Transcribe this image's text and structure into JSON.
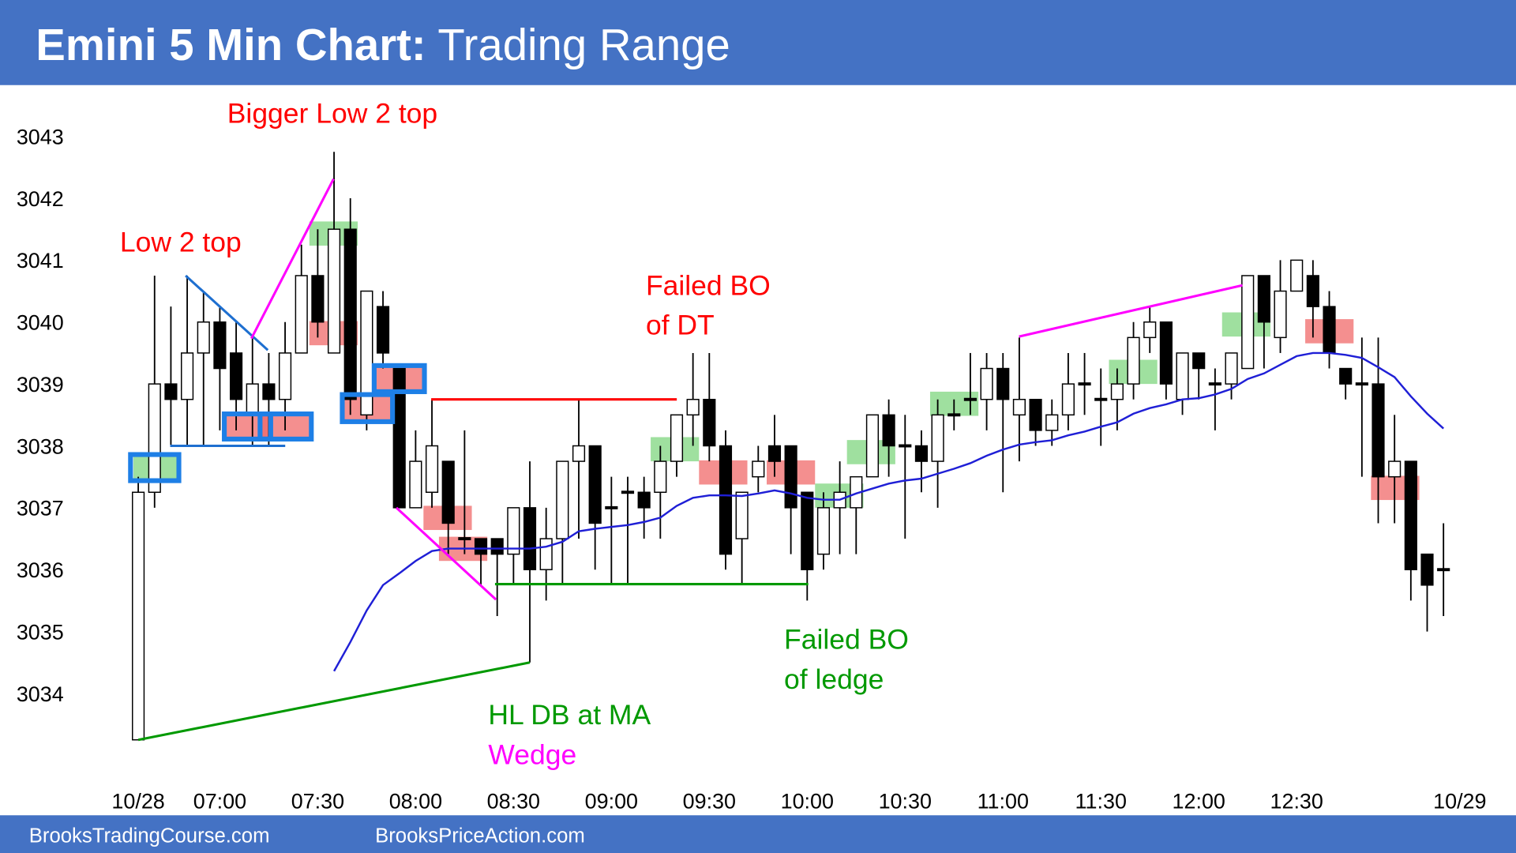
{
  "chart_data": {
    "type": "candlestick",
    "title": "Emini 5 Min Chart:",
    "subtitle": "Trading Range",
    "footer": [
      "BrooksTradingCourse.com",
      "BrooksPriceAction.com"
    ],
    "up_color": "#ffffff",
    "down_color": "#000000",
    "open": [
      3033.25,
      3037.25,
      3039,
      3038.75,
      3039.5,
      3040,
      3039.5,
      3038.5,
      3039,
      3038.75,
      3039.5,
      3040.75,
      3039.5,
      3041.5,
      3038.5,
      3040.25,
      3039.25,
      3037,
      3037.25,
      3037.75,
      3036.5,
      3036.5,
      3036.5,
      3036.25,
      3037,
      3036,
      3036.5,
      3037.75,
      3038,
      3037,
      3037.25,
      3037.25,
      3037.25,
      3037.75,
      3038.5,
      3038.75,
      3038,
      3036.5,
      3037.5,
      3038,
      3038,
      3037.25,
      3036.25,
      3037,
      3037,
      3037.5,
      3038.5,
      3038,
      3038,
      3037.75,
      3038.5,
      3038.75,
      3038.75,
      3039.25,
      3038.5,
      3038.75,
      3038.25,
      3038.5,
      3039,
      3038.75,
      3038.75,
      3039,
      3039.75,
      3040,
      3038.75,
      3039.5,
      3039,
      3039,
      3039.25,
      3040.75,
      3039.75,
      3040.5,
      3040.75,
      3040.25,
      3039.25,
      3039,
      3039,
      3037.5,
      3037.75,
      3036.25,
      3036
    ],
    "high": [
      3037.5,
      3040.75,
      3040.25,
      3040.75,
      3040.5,
      3040.25,
      3040,
      3039.75,
      3039.5,
      3040,
      3041.25,
      3041.5,
      3042.75,
      3042,
      3040.5,
      3040.5,
      3039.25,
      3038.25,
      3038.75,
      3037.75,
      3038.25,
      3036.5,
      3036.5,
      3037,
      3037.75,
      3037,
      3037.75,
      3038.75,
      3038,
      3037.5,
      3037.5,
      3037.5,
      3038,
      3038.5,
      3039.5,
      3039.5,
      3038.25,
      3037.25,
      3038,
      3038.5,
      3038,
      3037.25,
      3037.25,
      3037.75,
      3037.5,
      3038.5,
      3038.75,
      3038.5,
      3038.25,
      3038.75,
      3038.75,
      3039.5,
      3039.5,
      3039.5,
      3039.75,
      3038.75,
      3038.75,
      3039.5,
      3039.5,
      3039.25,
      3039.25,
      3040,
      3040.25,
      3040,
      3039.5,
      3039.5,
      3039.25,
      3039.5,
      3040.75,
      3040.75,
      3041,
      3041,
      3041,
      3040.5,
      3039.25,
      3039.75,
      3039.75,
      3038.5,
      3037.75,
      3036.25,
      3036.75
    ],
    "low": [
      3033.25,
      3037,
      3038,
      3038,
      3038,
      3038.25,
      3038.25,
      3038,
      3038,
      3038.25,
      3039.5,
      3039.75,
      3039.5,
      3038.5,
      3038.25,
      3039.25,
      3037,
      3037,
      3037,
      3036.25,
      3036.25,
      3035.75,
      3035.25,
      3035.75,
      3034.5,
      3035.5,
      3035.75,
      3036.5,
      3036,
      3035.75,
      3035.75,
      3036.5,
      3036.5,
      3037.5,
      3038,
      3037.75,
      3036,
      3035.75,
      3037.25,
      3037.5,
      3036.25,
      3035.5,
      3036,
      3036.25,
      3036.25,
      3037.5,
      3037.5,
      3036.5,
      3037.25,
      3037,
      3038.25,
      3038.5,
      3038.25,
      3037.25,
      3037.75,
      3038,
      3038,
      3038.25,
      3038.5,
      3038,
      3038.25,
      3038.75,
      3039.5,
      3038.75,
      3038.5,
      3038.75,
      3038.25,
      3038.75,
      3039.25,
      3039.25,
      3039.5,
      3040.5,
      3039.75,
      3039.25,
      3038.75,
      3037.5,
      3036.75,
      3036.75,
      3035.5,
      3035,
      3035.25
    ],
    "close": [
      3037.25,
      3039,
      3038.75,
      3039.5,
      3040,
      3039.25,
      3038.75,
      3039,
      3038.75,
      3039.5,
      3040.75,
      3040,
      3041.5,
      3038.75,
      3040.5,
      3039.5,
      3037,
      3037.75,
      3038,
      3036.75,
      3036.5,
      3036.25,
      3036.25,
      3037,
      3036,
      3036.5,
      3037.75,
      3038,
      3036.75,
      3037,
      3037.25,
      3037,
      3037.75,
      3038.5,
      3038.75,
      3038,
      3036.25,
      3037.25,
      3037.75,
      3037.75,
      3037,
      3036,
      3037,
      3037.25,
      3037.5,
      3038.5,
      3038,
      3038,
      3037.75,
      3038.5,
      3038.5,
      3038.75,
      3039.25,
      3038.75,
      3038.75,
      3038.25,
      3038.5,
      3039,
      3039,
      3038.75,
      3039,
      3039.75,
      3040,
      3039,
      3039.5,
      3039.25,
      3039,
      3039.5,
      3040.75,
      3040,
      3040.5,
      3041,
      3040.25,
      3039.5,
      3039,
      3039,
      3037.5,
      3037.75,
      3036,
      3035.75,
      3036
    ],
    "ma": {
      "color": "#1f1fd6",
      "values": [
        null,
        null,
        null,
        null,
        null,
        null,
        null,
        null,
        null,
        null,
        null,
        null,
        3034.36,
        3034.83,
        3035.34,
        3035.75,
        3035.94,
        3036.14,
        3036.3,
        3036.34,
        3036.34,
        3036.34,
        3036.34,
        3036.34,
        3036.34,
        3036.37,
        3036.45,
        3036.62,
        3036.66,
        3036.69,
        3036.72,
        3036.77,
        3036.84,
        3037.03,
        3037.16,
        3037.2,
        3037.2,
        3037.19,
        3037.23,
        3037.28,
        3037.23,
        3037.16,
        3037.13,
        3037.13,
        3037.23,
        3037.31,
        3037.39,
        3037.44,
        3037.47,
        3037.55,
        3037.63,
        3037.72,
        3037.84,
        3037.94,
        3038.02,
        3038.06,
        3038.09,
        3038.17,
        3038.23,
        3038.31,
        3038.38,
        3038.52,
        3038.61,
        3038.67,
        3038.75,
        3038.77,
        3038.83,
        3038.92,
        3039.08,
        3039.17,
        3039.31,
        3039.45,
        3039.5,
        3039.5,
        3039.47,
        3039.42,
        3039.27,
        3039.11,
        3038.8,
        3038.52,
        3038.28
      ]
    },
    "xlim": [
      -8,
      84
    ],
    "xticks": [
      {
        "value": 0,
        "label": "10/28"
      },
      {
        "value": 5,
        "label": "07:00"
      },
      {
        "value": 11,
        "label": "07:30"
      },
      {
        "value": 17,
        "label": "08:00"
      },
      {
        "value": 23,
        "label": "08:30"
      },
      {
        "value": 29,
        "label": "09:00"
      },
      {
        "value": 35,
        "label": "09:30"
      },
      {
        "value": 41,
        "label": "10:00"
      },
      {
        "value": 47,
        "label": "10:30"
      },
      {
        "value": 53,
        "label": "11:00"
      },
      {
        "value": 59,
        "label": "11:30"
      },
      {
        "value": 65,
        "label": "12:00"
      },
      {
        "value": 71,
        "label": "12:30"
      },
      {
        "value": 81,
        "label": "10/29"
      }
    ],
    "ylim": [
      3032.5,
      3044
    ],
    "yticks": [
      3034,
      3035,
      3036,
      3037,
      3038,
      3039,
      3040,
      3041,
      3042,
      3043
    ],
    "annotations": [
      {
        "text": "Bigger Low 2 top",
        "color": "#ff0000"
      },
      {
        "text": "Low 2 top",
        "color": "#ff0000"
      },
      {
        "text": "Failed BO",
        "color": "#ff0000"
      },
      {
        "text": "of DT",
        "color": "#ff0000"
      },
      {
        "text": "Failed BO",
        "color": "#009900"
      },
      {
        "text": "of ledge",
        "color": "#009900"
      },
      {
        "text": "HL DB at MA",
        "color": "#009900"
      },
      {
        "text": "Wedge",
        "color": "#ff00ff"
      }
    ]
  }
}
